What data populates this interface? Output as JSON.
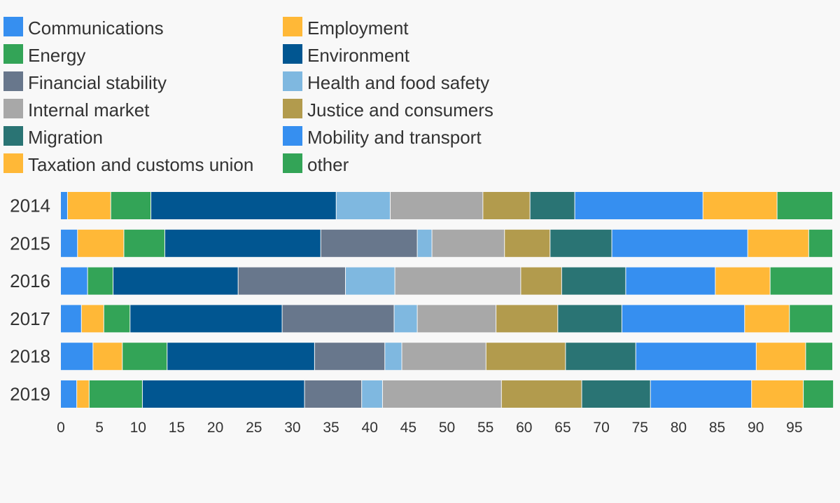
{
  "chart_data": {
    "type": "bar",
    "orientation": "horizontal",
    "stacked": true,
    "title": "",
    "xlabel": "",
    "ylabel": "",
    "xlim": [
      0,
      100
    ],
    "x_ticks": [
      0,
      5,
      10,
      15,
      20,
      25,
      30,
      35,
      40,
      45,
      50,
      55,
      60,
      65,
      70,
      75,
      80,
      85,
      90,
      95
    ],
    "legend_position": "top",
    "grid": false,
    "categories": [
      "2014",
      "2015",
      "2016",
      "2017",
      "2018",
      "2019"
    ],
    "series": [
      {
        "name": "Communications",
        "color": "#368ff0",
        "values": [
          0.9,
          2.2,
          3.5,
          2.7,
          4.2,
          2.1
        ]
      },
      {
        "name": "Employment",
        "color": "#ffb837",
        "values": [
          5.6,
          6.0,
          0,
          2.9,
          3.8,
          1.6
        ]
      },
      {
        "name": "Energy",
        "color": "#33a457",
        "values": [
          5.2,
          5.3,
          3.3,
          3.4,
          5.8,
          6.9
        ]
      },
      {
        "name": "Environment",
        "color": "#015691",
        "values": [
          24.0,
          20.2,
          16.2,
          19.7,
          19.1,
          21.0
        ]
      },
      {
        "name": "Financial stability",
        "color": "#68778c",
        "values": [
          0,
          12.5,
          13.9,
          14.5,
          9.1,
          7.4
        ]
      },
      {
        "name": "Health and food safety",
        "color": "#7fb8e0",
        "values": [
          7.0,
          1.9,
          6.4,
          3.0,
          2.2,
          2.7
        ]
      },
      {
        "name": "Internal market",
        "color": "#a8a8a8",
        "values": [
          12.0,
          9.4,
          16.3,
          10.2,
          10.9,
          15.4
        ]
      },
      {
        "name": "Justice and consumers",
        "color": "#b29b4d",
        "values": [
          6.1,
          5.9,
          5.3,
          8.0,
          10.3,
          10.4
        ]
      },
      {
        "name": "Migration",
        "color": "#2a7474",
        "values": [
          5.8,
          8.0,
          8.3,
          8.3,
          9.1,
          8.9
        ]
      },
      {
        "name": "Mobility and transport",
        "color": "#368ff0",
        "values": [
          16.6,
          17.6,
          11.6,
          15.9,
          15.6,
          13.1
        ]
      },
      {
        "name": "Taxation and customs union",
        "color": "#ffb837",
        "values": [
          9.6,
          7.9,
          7.1,
          5.8,
          6.4,
          6.7
        ]
      },
      {
        "name": "other",
        "color": "#33a457",
        "values": [
          7.2,
          3.1,
          8.1,
          5.6,
          3.5,
          3.9
        ]
      }
    ]
  }
}
